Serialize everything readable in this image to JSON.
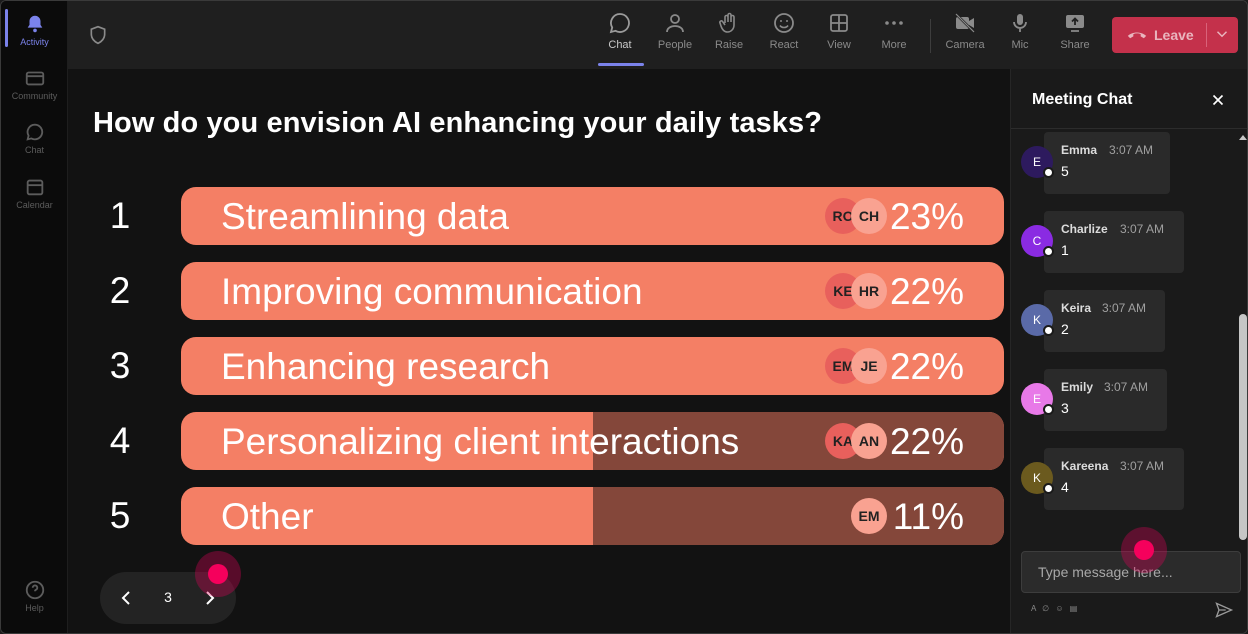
{
  "rail": {
    "items": [
      {
        "label": "Activity",
        "icon": "bell-icon"
      },
      {
        "label": "Community",
        "icon": "community-icon"
      },
      {
        "label": "Chat",
        "icon": "chat-icon"
      },
      {
        "label": "Calendar",
        "icon": "calendar-icon"
      }
    ],
    "help_label": "Help"
  },
  "toolbar": {
    "chat": "Chat",
    "people": "People",
    "raise": "Raise",
    "react": "React",
    "view": "View",
    "more": "More",
    "camera": "Camera",
    "mic": "Mic",
    "share": "Share",
    "leave": "Leave",
    "leave_color": "#c4314b"
  },
  "poll": {
    "question": "How do you envision AI enhancing your daily tasks?",
    "bar_color": "#f47f65",
    "options": [
      {
        "num": "1",
        "label": "Streamlining data",
        "percent": "23%",
        "fill": 1.0,
        "avatars": [
          "RO",
          "CH"
        ]
      },
      {
        "num": "2",
        "label": "Improving communication",
        "percent": "22%",
        "fill": 1.0,
        "avatars": [
          "KE",
          "HR"
        ]
      },
      {
        "num": "3",
        "label": "Enhancing research",
        "percent": "22%",
        "fill": 1.0,
        "avatars": [
          "EM",
          "JE"
        ]
      },
      {
        "num": "4",
        "label": "Personalizing client interactions",
        "percent": "22%",
        "fill": 0.5,
        "avatars": [
          "KA",
          "AN"
        ]
      },
      {
        "num": "5",
        "label": "Other",
        "percent": "11%",
        "fill": 0.5,
        "avatars": [
          "EM"
        ]
      }
    ],
    "page": "3"
  },
  "chat": {
    "title": "Meeting Chat",
    "placeholder": "Type message here...",
    "messages": [
      {
        "initial": "E",
        "name": "Emma",
        "time": "3:07 AM",
        "text": "5",
        "color": "#2d1a5e"
      },
      {
        "initial": "C",
        "name": "Charlize",
        "time": "3:07 AM",
        "text": "1",
        "color": "#8a2be2"
      },
      {
        "initial": "K",
        "name": "Keira",
        "time": "3:07 AM",
        "text": "2",
        "color": "#5a6aa8"
      },
      {
        "initial": "E",
        "name": "Emily",
        "time": "3:07 AM",
        "text": "3",
        "color": "#e879e8"
      },
      {
        "initial": "K",
        "name": "Kareena",
        "time": "3:07 AM",
        "text": "4",
        "color": "#6b5a1e"
      }
    ]
  }
}
